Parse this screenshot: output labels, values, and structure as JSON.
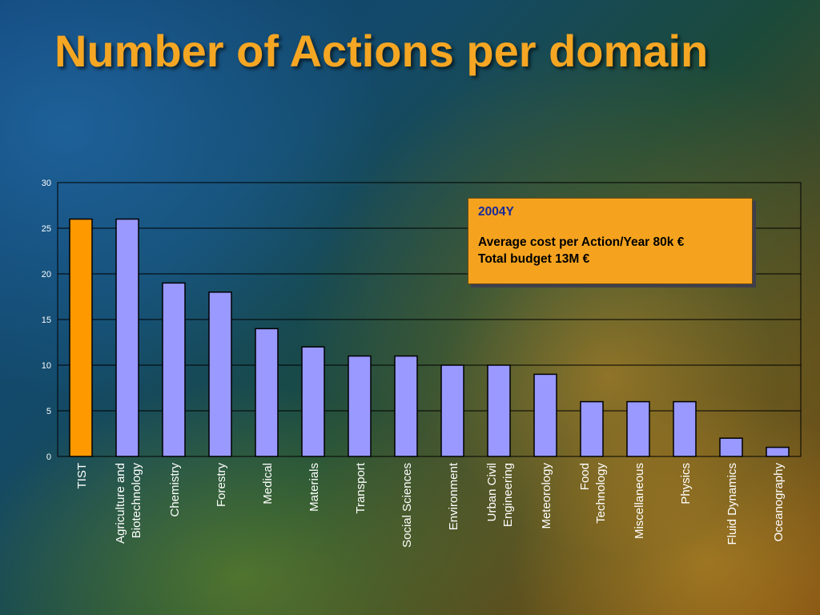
{
  "slide": {
    "title": "Number of Actions per domain"
  },
  "note": {
    "year": "2004Y",
    "line1": "Average cost per Action/Year 80k €",
    "line2": "Total budget 13M €"
  },
  "colors": {
    "highlight_bar": "#ff9900",
    "bar": "#9999ff",
    "title": "#f5a623",
    "note_bg": "#f5a31f",
    "note_year": "#1a2a9a"
  },
  "chart_data": {
    "type": "bar",
    "title": "",
    "xlabel": "",
    "ylabel": "",
    "ylim": [
      0,
      30
    ],
    "yticks": [
      0,
      5,
      10,
      15,
      20,
      25,
      30
    ],
    "grid": true,
    "categories": [
      "TIST",
      "Agriculture and Biotechnology",
      "Chemistry",
      "Forestry",
      "Medical",
      "Materials",
      "Transport",
      "Social Sciences",
      "Environment",
      "Urban Civil Engineering",
      "Meteorology",
      "Food Technology",
      "Miscellaneous",
      "Physics",
      "Fluid Dynamics",
      "Oceanography"
    ],
    "category_label_lines": [
      [
        "TIST"
      ],
      [
        "Agriculture and",
        "Biotechnology"
      ],
      [
        "Chemistry"
      ],
      [
        "Forestry"
      ],
      [
        "Medical"
      ],
      [
        "Materials"
      ],
      [
        "Transport"
      ],
      [
        "Social Sciences"
      ],
      [
        "Environment"
      ],
      [
        "Urban Civil",
        "Engineering"
      ],
      [
        "Meteorology"
      ],
      [
        "Food",
        "Technology"
      ],
      [
        "Miscellaneous"
      ],
      [
        "Physics"
      ],
      [
        "Fluid Dynamics"
      ],
      [
        "Oceanography"
      ]
    ],
    "values": [
      26,
      26,
      19,
      18,
      14,
      12,
      11,
      11,
      10,
      10,
      9,
      6,
      6,
      6,
      2,
      1
    ],
    "highlight_index": 0
  }
}
